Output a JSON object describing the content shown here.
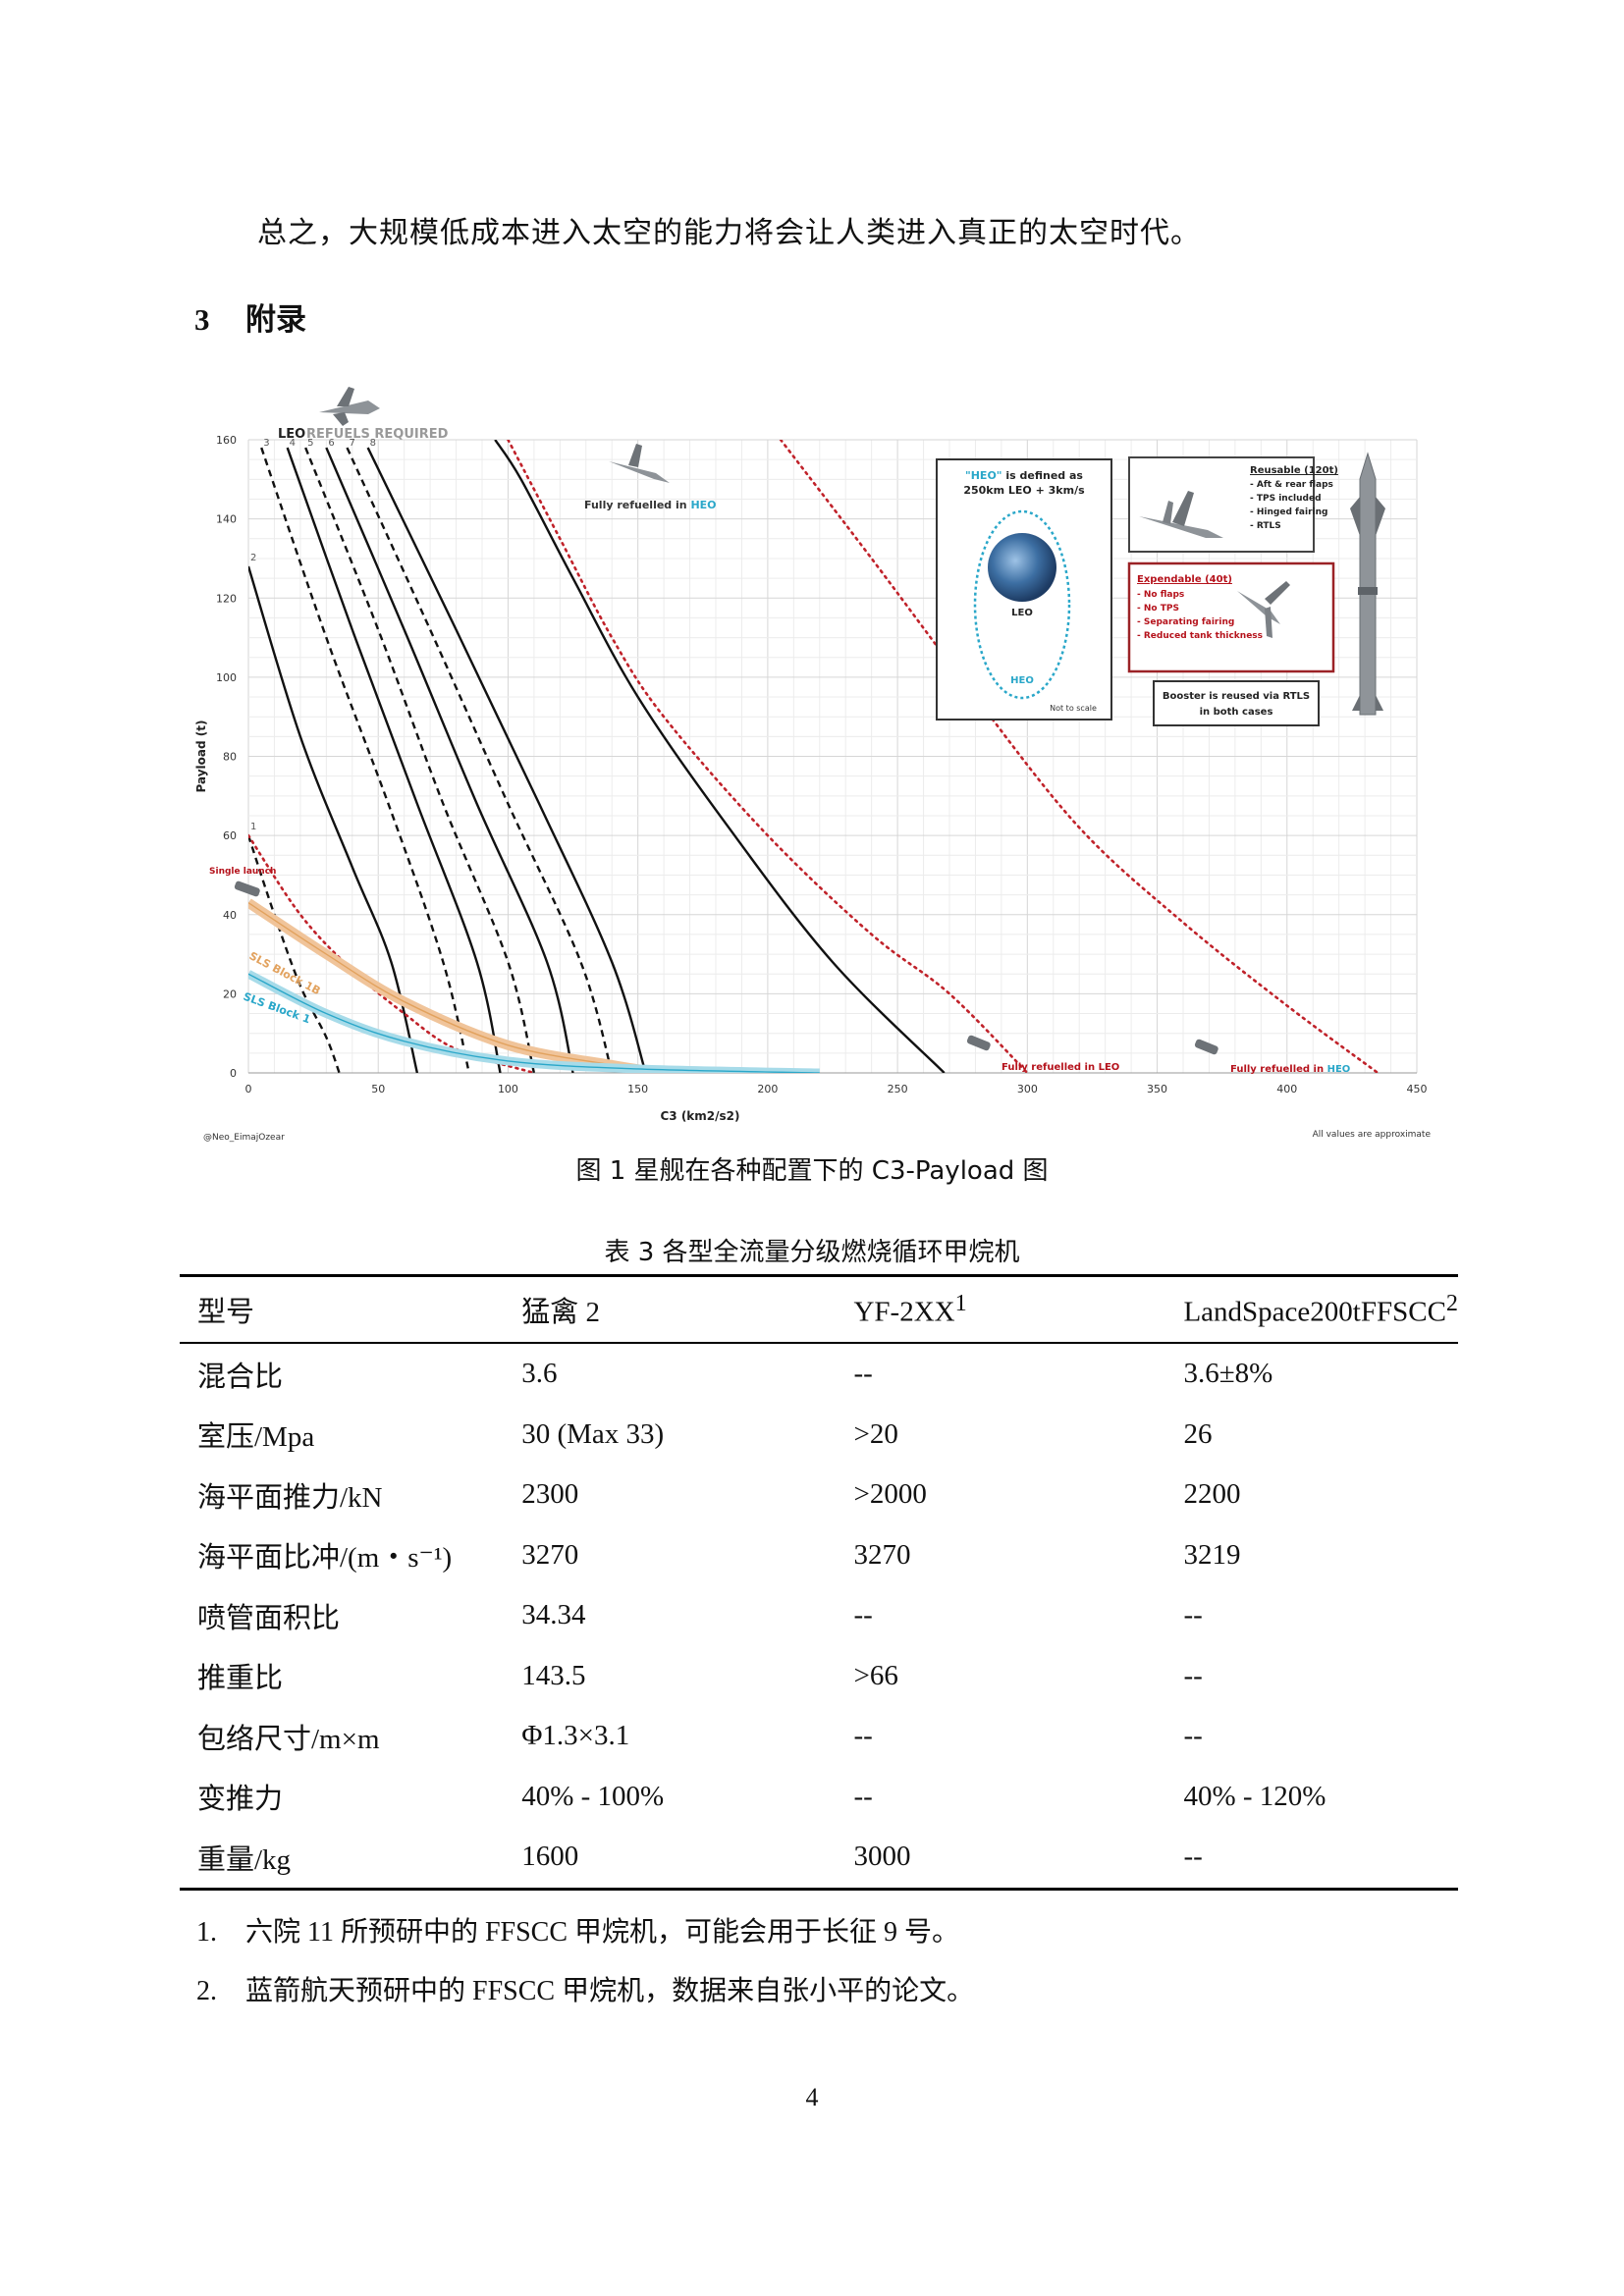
{
  "paragraph": "总之，大规模低成本进入太空的能力将会让人类进入真正的太空时代。",
  "section": {
    "number": "3",
    "title": "附录"
  },
  "figure": {
    "caption": "图 1 星舰在各种配置下的 C3-Payload 图",
    "credit": "@Neo_EimajOzear",
    "note": "All values are approximate",
    "leo_label": "LEO",
    "refuels_label": "REFUELS REQUIRED",
    "fully_heo_prefix": "Fully refuelled in ",
    "fully_heo_suffix": "HEO",
    "fully_leo_label": "Fully refuelled in LEO",
    "fully_heo_bottom_prefix": "Fully refuelled in ",
    "single_launch": "Single launch",
    "sls_1b": "SLS Block 1B",
    "sls_1": "SLS Block 1",
    "heo_box": {
      "line1_q": "\"HEO\"",
      "line1_rest": " is defined as",
      "line2": "250km LEO + 3km/s",
      "leo": "LEO",
      "heo": "HEO",
      "scale": "Not to scale"
    },
    "reusable_box": {
      "title": "Reusable (120t)",
      "items": [
        "- Aft & rear flaps",
        "- TPS included",
        "- Hinged fairing",
        "- RTLS"
      ]
    },
    "expendable_box": {
      "title": "Expendable (40t)",
      "items": [
        "- No flaps",
        "- No TPS",
        "- Separating fairing",
        "- Reduced tank thickness"
      ]
    },
    "booster_box": {
      "line1": "Booster is reused via RTLS",
      "line2": "in both cases"
    }
  },
  "chart_data": {
    "type": "line",
    "xlabel": "C3 (km2/s2)",
    "ylabel": "Payload (t)",
    "xlim": [
      0,
      450
    ],
    "ylim": [
      0,
      160
    ],
    "xticks": [
      0,
      50,
      100,
      150,
      200,
      250,
      300,
      350,
      400,
      450
    ],
    "yticks": [
      0,
      20,
      40,
      60,
      80,
      100,
      120,
      140,
      160
    ],
    "grid": true,
    "refuel_labels": [
      "1",
      "2",
      "3",
      "4",
      "5",
      "6",
      "7",
      "8"
    ],
    "series": [
      {
        "label": "1",
        "style": "black-dashed",
        "points": [
          [
            0,
            60
          ],
          [
            10,
            40
          ],
          [
            20,
            22
          ],
          [
            30,
            9
          ],
          [
            35,
            0
          ]
        ]
      },
      {
        "label": "2",
        "style": "black-solid",
        "points": [
          [
            0,
            128
          ],
          [
            20,
            85
          ],
          [
            40,
            52
          ],
          [
            55,
            28
          ],
          [
            65,
            0
          ]
        ]
      },
      {
        "label": "3",
        "style": "black-dashed",
        "points": [
          [
            5,
            158
          ],
          [
            30,
            110
          ],
          [
            55,
            66
          ],
          [
            75,
            28
          ],
          [
            85,
            0
          ]
        ]
      },
      {
        "label": "4",
        "style": "black-solid",
        "points": [
          [
            15,
            158
          ],
          [
            40,
            112
          ],
          [
            65,
            68
          ],
          [
            88,
            28
          ],
          [
            97,
            0
          ]
        ]
      },
      {
        "label": "5",
        "style": "black-dashed",
        "points": [
          [
            22,
            158
          ],
          [
            50,
            112
          ],
          [
            75,
            68
          ],
          [
            100,
            28
          ],
          [
            110,
            0
          ]
        ]
      },
      {
        "label": "6",
        "style": "black-solid",
        "points": [
          [
            30,
            158
          ],
          [
            60,
            112
          ],
          [
            88,
            68
          ],
          [
            115,
            28
          ],
          [
            125,
            0
          ]
        ]
      },
      {
        "label": "7",
        "style": "black-dashed",
        "points": [
          [
            38,
            158
          ],
          [
            70,
            112
          ],
          [
            100,
            68
          ],
          [
            128,
            28
          ],
          [
            140,
            0
          ]
        ]
      },
      {
        "label": "8",
        "style": "black-solid",
        "points": [
          [
            46,
            158
          ],
          [
            80,
            112
          ],
          [
            112,
            68
          ],
          [
            140,
            28
          ],
          [
            153,
            0
          ]
        ]
      },
      {
        "label": "",
        "style": "black-solid",
        "points": [
          [
            95,
            160
          ],
          [
            105,
            150
          ],
          [
            125,
            125
          ],
          [
            150,
            95
          ],
          [
            185,
            62
          ],
          [
            225,
            28
          ],
          [
            268,
            0
          ]
        ]
      },
      {
        "label": "",
        "style": "red-dotted",
        "points": [
          [
            0,
            60
          ],
          [
            20,
            40
          ],
          [
            40,
            26
          ],
          [
            60,
            15
          ],
          [
            80,
            6
          ],
          [
            110,
            0
          ]
        ]
      },
      {
        "label": "",
        "style": "red-dotted",
        "points": [
          [
            100,
            160
          ],
          [
            120,
            135
          ],
          [
            140,
            110
          ],
          [
            160,
            90
          ],
          [
            200,
            60
          ],
          [
            240,
            35
          ],
          [
            270,
            20
          ],
          [
            300,
            0
          ]
        ]
      },
      {
        "label": "",
        "style": "red-dotted",
        "points": [
          [
            205,
            160
          ],
          [
            240,
            130
          ],
          [
            280,
            95
          ],
          [
            320,
            62
          ],
          [
            360,
            38
          ],
          [
            400,
            17
          ],
          [
            435,
            0
          ]
        ]
      },
      {
        "label": "SLS Block 1B",
        "style": "orange-band",
        "points": [
          [
            0,
            43
          ],
          [
            30,
            30
          ],
          [
            60,
            18
          ],
          [
            100,
            7
          ],
          [
            140,
            2
          ],
          [
            160,
            0
          ]
        ]
      },
      {
        "label": "SLS Block 1",
        "style": "cyan-band",
        "points": [
          [
            0,
            25
          ],
          [
            30,
            15
          ],
          [
            60,
            8
          ],
          [
            100,
            3
          ],
          [
            150,
            1
          ],
          [
            220,
            0
          ]
        ]
      }
    ]
  },
  "table": {
    "caption": "表 3 各型全流量分级燃烧循环甲烷机",
    "headers": [
      "型号",
      "猛禽 2",
      "YF-2XX",
      "LandSpace200tFFSCC"
    ],
    "header_sup": [
      "",
      "",
      "1",
      "2"
    ],
    "rows": [
      [
        "混合比",
        "3.6",
        "--",
        "3.6±8%"
      ],
      [
        "室压/Mpa",
        "30 (Max 33)",
        ">20",
        "26"
      ],
      [
        "海平面推力/kN",
        "2300",
        ">2000",
        "2200"
      ],
      [
        "海平面比冲/(m・s⁻¹)",
        "3270",
        "3270",
        "3219"
      ],
      [
        "喷管面积比",
        "34.34",
        "--",
        "--"
      ],
      [
        "推重比",
        "143.5",
        ">66",
        "--"
      ],
      [
        "包络尺寸/m×m",
        "Φ1.3×3.1",
        "--",
        "--"
      ],
      [
        "变推力",
        "40% - 100%",
        "--",
        "40% - 120%"
      ],
      [
        "重量/kg",
        "1600",
        "3000",
        "--"
      ]
    ]
  },
  "notes": [
    {
      "n": "1.",
      "text": "六院 11 所预研中的 FFSCC 甲烷机，可能会用于长征 9 号。"
    },
    {
      "n": "2.",
      "text": "蓝箭航天预研中的 FFSCC 甲烷机，数据来自张小平的论文。"
    }
  ],
  "page_number": "4"
}
